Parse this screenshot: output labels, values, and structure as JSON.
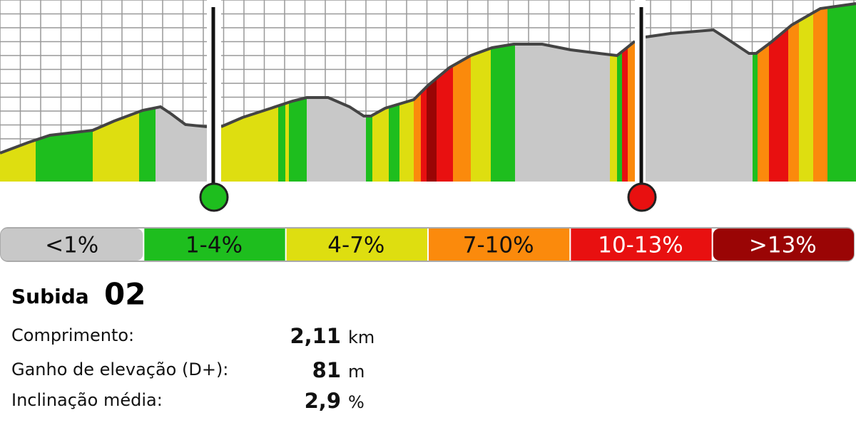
{
  "legend": [
    {
      "label": "<1%",
      "color": "#c8c8c8"
    },
    {
      "label": "1-4%",
      "color": "#1ebe1e"
    },
    {
      "label": "4-7%",
      "color": "#dede10"
    },
    {
      "label": "7-10%",
      "color": "#fb8a0c"
    },
    {
      "label": "10-13%",
      "color": "#e81010"
    },
    {
      "label": ">13%",
      "color": "#9a0505"
    }
  ],
  "climb": {
    "label": "Subida",
    "number": "02"
  },
  "stats": [
    {
      "label": "Comprimento:",
      "value": "2,11",
      "unit": "km"
    },
    {
      "label": "Ganho de elevação (D+):",
      "value": "81",
      "unit": "m"
    },
    {
      "label": "Inclinação média:",
      "value": "2,9",
      "unit": "%"
    }
  ]
}
